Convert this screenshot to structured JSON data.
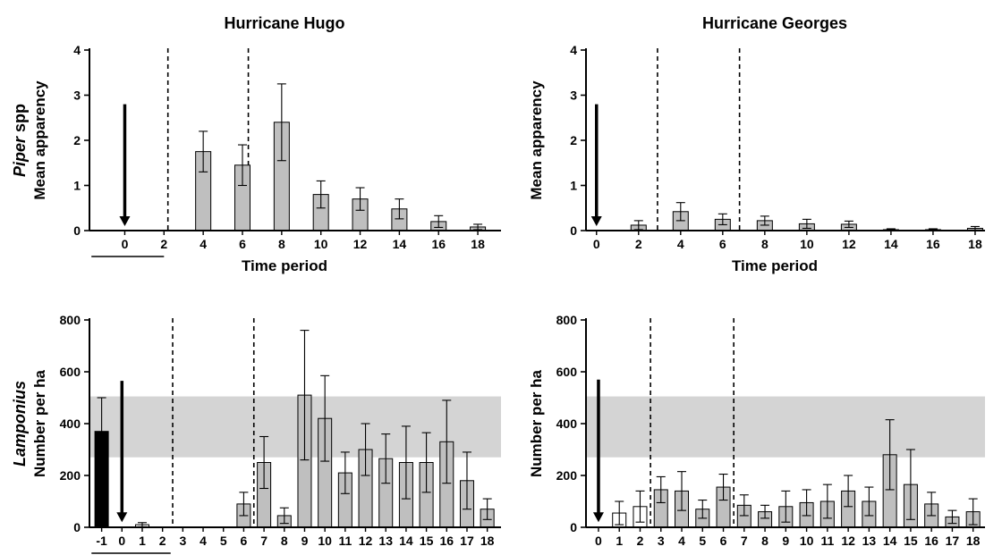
{
  "chart_data": [
    {
      "id": "hugo_piper",
      "type": "bar",
      "title": "Hurricane Hugo",
      "ylabel_italic": "Piper",
      "ylabel_suffix": " spp",
      "ylabel": "Mean apparency",
      "xlabel": "Time period",
      "ylim": [
        0,
        4
      ],
      "yticks": [
        0,
        1,
        2,
        3,
        4
      ],
      "xlim": [
        -1.8,
        19
      ],
      "xticks": [
        0,
        2,
        4,
        6,
        8,
        10,
        12,
        14,
        16,
        18
      ],
      "bars": [
        {
          "x": 4,
          "value": 1.75,
          "err": 0.45,
          "fill": "#bfbfbf"
        },
        {
          "x": 6,
          "value": 1.45,
          "err": 0.45,
          "fill": "#bfbfbf"
        },
        {
          "x": 8,
          "value": 2.4,
          "err": 0.85,
          "fill": "#bfbfbf"
        },
        {
          "x": 10,
          "value": 0.8,
          "err": 0.3,
          "fill": "#bfbfbf"
        },
        {
          "x": 12,
          "value": 0.7,
          "err": 0.25,
          "fill": "#bfbfbf"
        },
        {
          "x": 14,
          "value": 0.48,
          "err": 0.22,
          "fill": "#bfbfbf"
        },
        {
          "x": 16,
          "value": 0.2,
          "err": 0.13,
          "fill": "#bfbfbf"
        },
        {
          "x": 18,
          "value": 0.08,
          "err": 0.06,
          "fill": "#bfbfbf"
        }
      ],
      "arrow": {
        "x": 0,
        "from": 2.8,
        "to": 0.1
      },
      "dashed_lines_x": [
        2.2,
        6.3
      ],
      "underline_x": [
        -1.7,
        2.0
      ]
    },
    {
      "id": "georges_piper",
      "type": "bar",
      "title": "Hurricane Georges",
      "ylabel": "Mean apparency",
      "xlabel": "Time period",
      "ylim": [
        0,
        4
      ],
      "yticks": [
        0,
        1,
        2,
        3,
        4
      ],
      "xlim": [
        -0.5,
        18.3
      ],
      "xticks": [
        0,
        2,
        4,
        6,
        8,
        10,
        12,
        14,
        16,
        18
      ],
      "bars": [
        {
          "x": 2,
          "value": 0.12,
          "err": 0.1,
          "fill": "#bfbfbf"
        },
        {
          "x": 4,
          "value": 0.42,
          "err": 0.2,
          "fill": "#bfbfbf"
        },
        {
          "x": 6,
          "value": 0.25,
          "err": 0.12,
          "fill": "#bfbfbf"
        },
        {
          "x": 8,
          "value": 0.22,
          "err": 0.1,
          "fill": "#bfbfbf"
        },
        {
          "x": 10,
          "value": 0.15,
          "err": 0.1,
          "fill": "#bfbfbf"
        },
        {
          "x": 12,
          "value": 0.14,
          "err": 0.07,
          "fill": "#bfbfbf"
        },
        {
          "x": 14,
          "value": 0.02,
          "err": 0.02,
          "fill": "#bfbfbf"
        },
        {
          "x": 16,
          "value": 0.02,
          "err": 0.02,
          "fill": "#bfbfbf"
        },
        {
          "x": 18,
          "value": 0.05,
          "err": 0.04,
          "fill": "#bfbfbf"
        }
      ],
      "arrow": {
        "x": 0,
        "from": 2.8,
        "to": 0.1
      },
      "dashed_lines_x": [
        2.9,
        6.8
      ]
    },
    {
      "id": "hugo_lamponius",
      "type": "bar",
      "ylabel_italic": "Lamponius",
      "ylabel": "Number per ha",
      "xlabel": "Time period",
      "ylim": [
        0,
        800
      ],
      "yticks": [
        0,
        200,
        400,
        600,
        800
      ],
      "xlim": [
        -1.6,
        18.5
      ],
      "xticks": [
        -1,
        0,
        1,
        2,
        3,
        4,
        5,
        6,
        7,
        8,
        9,
        10,
        11,
        12,
        13,
        14,
        15,
        16,
        17,
        18
      ],
      "band": [
        270,
        505
      ],
      "bars": [
        {
          "x": -1,
          "value": 370,
          "err": 130,
          "fill": "#000000"
        },
        {
          "x": 1,
          "value": 10,
          "err": 8,
          "fill": "#ffffff"
        },
        {
          "x": 6,
          "value": 90,
          "err": 45,
          "fill": "#bfbfbf"
        },
        {
          "x": 7,
          "value": 250,
          "err": 100,
          "fill": "#bfbfbf"
        },
        {
          "x": 8,
          "value": 45,
          "err": 30,
          "fill": "#bfbfbf"
        },
        {
          "x": 9,
          "value": 510,
          "err": 250,
          "fill": "#bfbfbf"
        },
        {
          "x": 10,
          "value": 420,
          "err": 165,
          "fill": "#bfbfbf"
        },
        {
          "x": 11,
          "value": 210,
          "err": 80,
          "fill": "#bfbfbf"
        },
        {
          "x": 12,
          "value": 300,
          "err": 100,
          "fill": "#bfbfbf"
        },
        {
          "x": 13,
          "value": 265,
          "err": 95,
          "fill": "#bfbfbf"
        },
        {
          "x": 14,
          "value": 250,
          "err": 140,
          "fill": "#bfbfbf"
        },
        {
          "x": 15,
          "value": 250,
          "err": 115,
          "fill": "#bfbfbf"
        },
        {
          "x": 16,
          "value": 330,
          "err": 160,
          "fill": "#bfbfbf"
        },
        {
          "x": 17,
          "value": 180,
          "err": 110,
          "fill": "#bfbfbf"
        },
        {
          "x": 18,
          "value": 70,
          "err": 40,
          "fill": "#bfbfbf"
        }
      ],
      "arrow": {
        "x": 0,
        "from": 565,
        "to": 20
      },
      "dashed_lines_x": [
        2.5,
        6.5
      ],
      "underline_x": [
        -1.5,
        2.4
      ]
    },
    {
      "id": "georges_lamponius",
      "type": "bar",
      "ylabel": "Number per ha",
      "xlabel": "Time period",
      "ylim": [
        0,
        800
      ],
      "yticks": [
        0,
        200,
        400,
        600,
        800
      ],
      "xlim": [
        -0.6,
        18.4
      ],
      "xticks": [
        0,
        1,
        2,
        3,
        4,
        5,
        6,
        7,
        8,
        9,
        10,
        11,
        12,
        13,
        14,
        15,
        16,
        17,
        18
      ],
      "band": [
        270,
        505
      ],
      "bars": [
        {
          "x": 1,
          "value": 55,
          "err": 45,
          "fill": "#ffffff"
        },
        {
          "x": 2,
          "value": 80,
          "err": 60,
          "fill": "#ffffff"
        },
        {
          "x": 3,
          "value": 145,
          "err": 50,
          "fill": "#bfbfbf"
        },
        {
          "x": 4,
          "value": 140,
          "err": 75,
          "fill": "#bfbfbf"
        },
        {
          "x": 5,
          "value": 70,
          "err": 35,
          "fill": "#bfbfbf"
        },
        {
          "x": 6,
          "value": 155,
          "err": 50,
          "fill": "#bfbfbf"
        },
        {
          "x": 7,
          "value": 85,
          "err": 40,
          "fill": "#bfbfbf"
        },
        {
          "x": 8,
          "value": 60,
          "err": 25,
          "fill": "#bfbfbf"
        },
        {
          "x": 9,
          "value": 80,
          "err": 60,
          "fill": "#bfbfbf"
        },
        {
          "x": 10,
          "value": 95,
          "err": 50,
          "fill": "#bfbfbf"
        },
        {
          "x": 11,
          "value": 100,
          "err": 65,
          "fill": "#bfbfbf"
        },
        {
          "x": 12,
          "value": 140,
          "err": 60,
          "fill": "#bfbfbf"
        },
        {
          "x": 13,
          "value": 100,
          "err": 55,
          "fill": "#bfbfbf"
        },
        {
          "x": 14,
          "value": 280,
          "err": 135,
          "fill": "#bfbfbf"
        },
        {
          "x": 15,
          "value": 165,
          "err": 135,
          "fill": "#bfbfbf"
        },
        {
          "x": 16,
          "value": 90,
          "err": 45,
          "fill": "#bfbfbf"
        },
        {
          "x": 17,
          "value": 40,
          "err": 25,
          "fill": "#bfbfbf"
        },
        {
          "x": 18,
          "value": 60,
          "err": 50,
          "fill": "#bfbfbf"
        }
      ],
      "arrow": {
        "x": 0,
        "from": 570,
        "to": 20
      },
      "dashed_lines_x": [
        2.5,
        6.5
      ]
    }
  ]
}
